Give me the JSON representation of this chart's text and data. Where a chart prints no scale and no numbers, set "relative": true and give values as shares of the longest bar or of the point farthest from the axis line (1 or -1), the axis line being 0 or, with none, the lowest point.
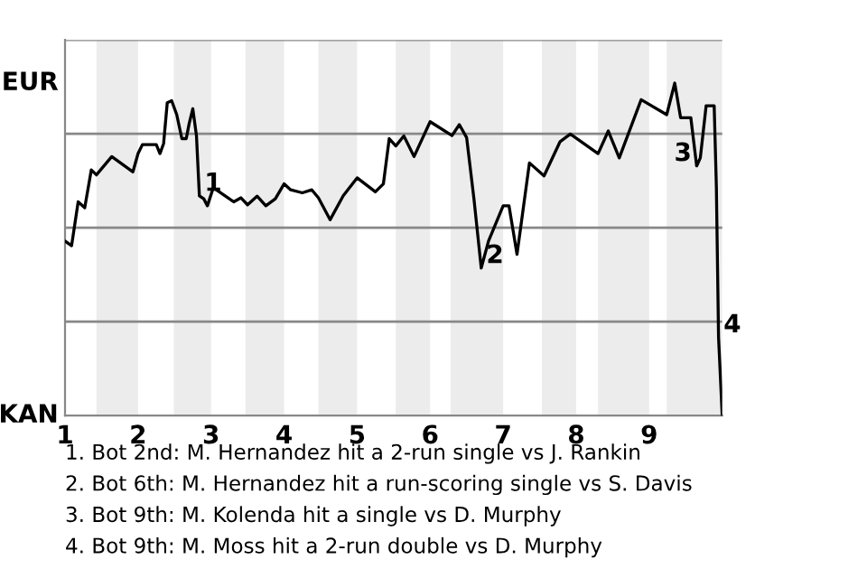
{
  "chart_data": {
    "type": "line",
    "relative": true,
    "x": [
      1.0,
      1.09,
      1.18,
      1.27,
      1.36,
      1.43,
      1.64,
      1.93,
      2.0,
      2.06,
      2.25,
      2.3,
      2.35,
      2.4,
      2.46,
      2.53,
      2.6,
      2.66,
      2.7,
      2.75,
      2.8,
      2.84,
      2.9,
      2.95,
      3.03,
      3.31,
      3.41,
      3.5,
      3.63,
      3.75,
      3.88,
      4.0,
      4.09,
      4.25,
      4.38,
      4.47,
      4.63,
      4.81,
      5.0,
      5.25,
      5.36,
      5.44,
      5.53,
      5.64,
      5.78,
      6.0,
      6.3,
      6.4,
      6.5,
      6.6,
      6.7,
      6.8,
      7.0,
      7.08,
      7.19,
      7.36,
      7.56,
      7.78,
      7.92,
      8.3,
      8.44,
      8.59,
      8.89,
      9.24,
      9.35,
      9.43,
      9.57,
      9.65,
      9.7,
      9.78,
      9.89,
      9.92,
      9.95,
      10.0
    ],
    "series": [
      {
        "color": "#000000",
        "values": [
          0.525,
          0.511,
          0.643,
          0.625,
          0.739,
          0.724,
          0.779,
          0.733,
          0.788,
          0.815,
          0.815,
          0.788,
          0.818,
          0.941,
          0.947,
          0.905,
          0.833,
          0.833,
          0.878,
          0.923,
          0.842,
          0.661,
          0.652,
          0.631,
          0.685,
          0.643,
          0.655,
          0.634,
          0.66,
          0.631,
          0.652,
          0.697,
          0.679,
          0.67,
          0.679,
          0.655,
          0.589,
          0.661,
          0.715,
          0.673,
          0.697,
          0.833,
          0.811,
          0.841,
          0.779,
          0.884,
          0.842,
          0.875,
          0.836,
          0.652,
          0.444,
          0.525,
          0.631,
          0.631,
          0.485,
          0.76,
          0.721,
          0.824,
          0.847,
          0.788,
          0.856,
          0.775,
          0.95,
          0.905,
          1.0,
          0.896,
          0.896,
          0.751,
          0.775,
          0.932,
          0.932,
          0.688,
          0.235,
          0.0
        ]
      }
    ],
    "xlim": [
      1,
      10
    ],
    "xticks": [
      1,
      2,
      3,
      4,
      5,
      6,
      7,
      8,
      9
    ],
    "grid": "y",
    "marker": "none",
    "line_style": "solid",
    "bands": [
      {
        "axis": "x",
        "from": 1.43,
        "to": 2,
        "color": "#ececec"
      },
      {
        "axis": "x",
        "from": 2.49,
        "to": 3,
        "color": "#ececec"
      },
      {
        "axis": "x",
        "from": 3.47,
        "to": 4,
        "color": "#ececec"
      },
      {
        "axis": "x",
        "from": 4.47,
        "to": 5,
        "color": "#ececec"
      },
      {
        "axis": "x",
        "from": 5.53,
        "to": 6,
        "color": "#ececec"
      },
      {
        "axis": "x",
        "from": 6.28,
        "to": 7,
        "color": "#ececec"
      },
      {
        "axis": "x",
        "from": 7.53,
        "to": 8,
        "color": "#ececec"
      },
      {
        "axis": "x",
        "from": 8.3,
        "to": 9,
        "color": "#ececec"
      },
      {
        "axis": "x",
        "from": 9.24,
        "to": 10,
        "color": "#ececec"
      }
    ],
    "annotations": [
      "EUR",
      "KAN",
      {
        "text": "1",
        "x": 2.84,
        "y": 0.661
      },
      {
        "text": "2",
        "x": 6.7,
        "y": 0.444
      },
      {
        "text": "3",
        "x": 9.65,
        "y": 0.751
      },
      {
        "text": "4",
        "x": 9.95,
        "y": 0.235
      },
      "1. Bot 2nd: M. Hernandez hit a 2-run single vs J. Rankin",
      "2. Bot 6th: M. Hernandez hit a run-scoring single vs S. Davis",
      "3. Bot 9th: M. Kolenda hit a single vs D. Murphy",
      "4. Bot 9th: M. Moss hit a 2-run double vs D. Murphy"
    ]
  }
}
